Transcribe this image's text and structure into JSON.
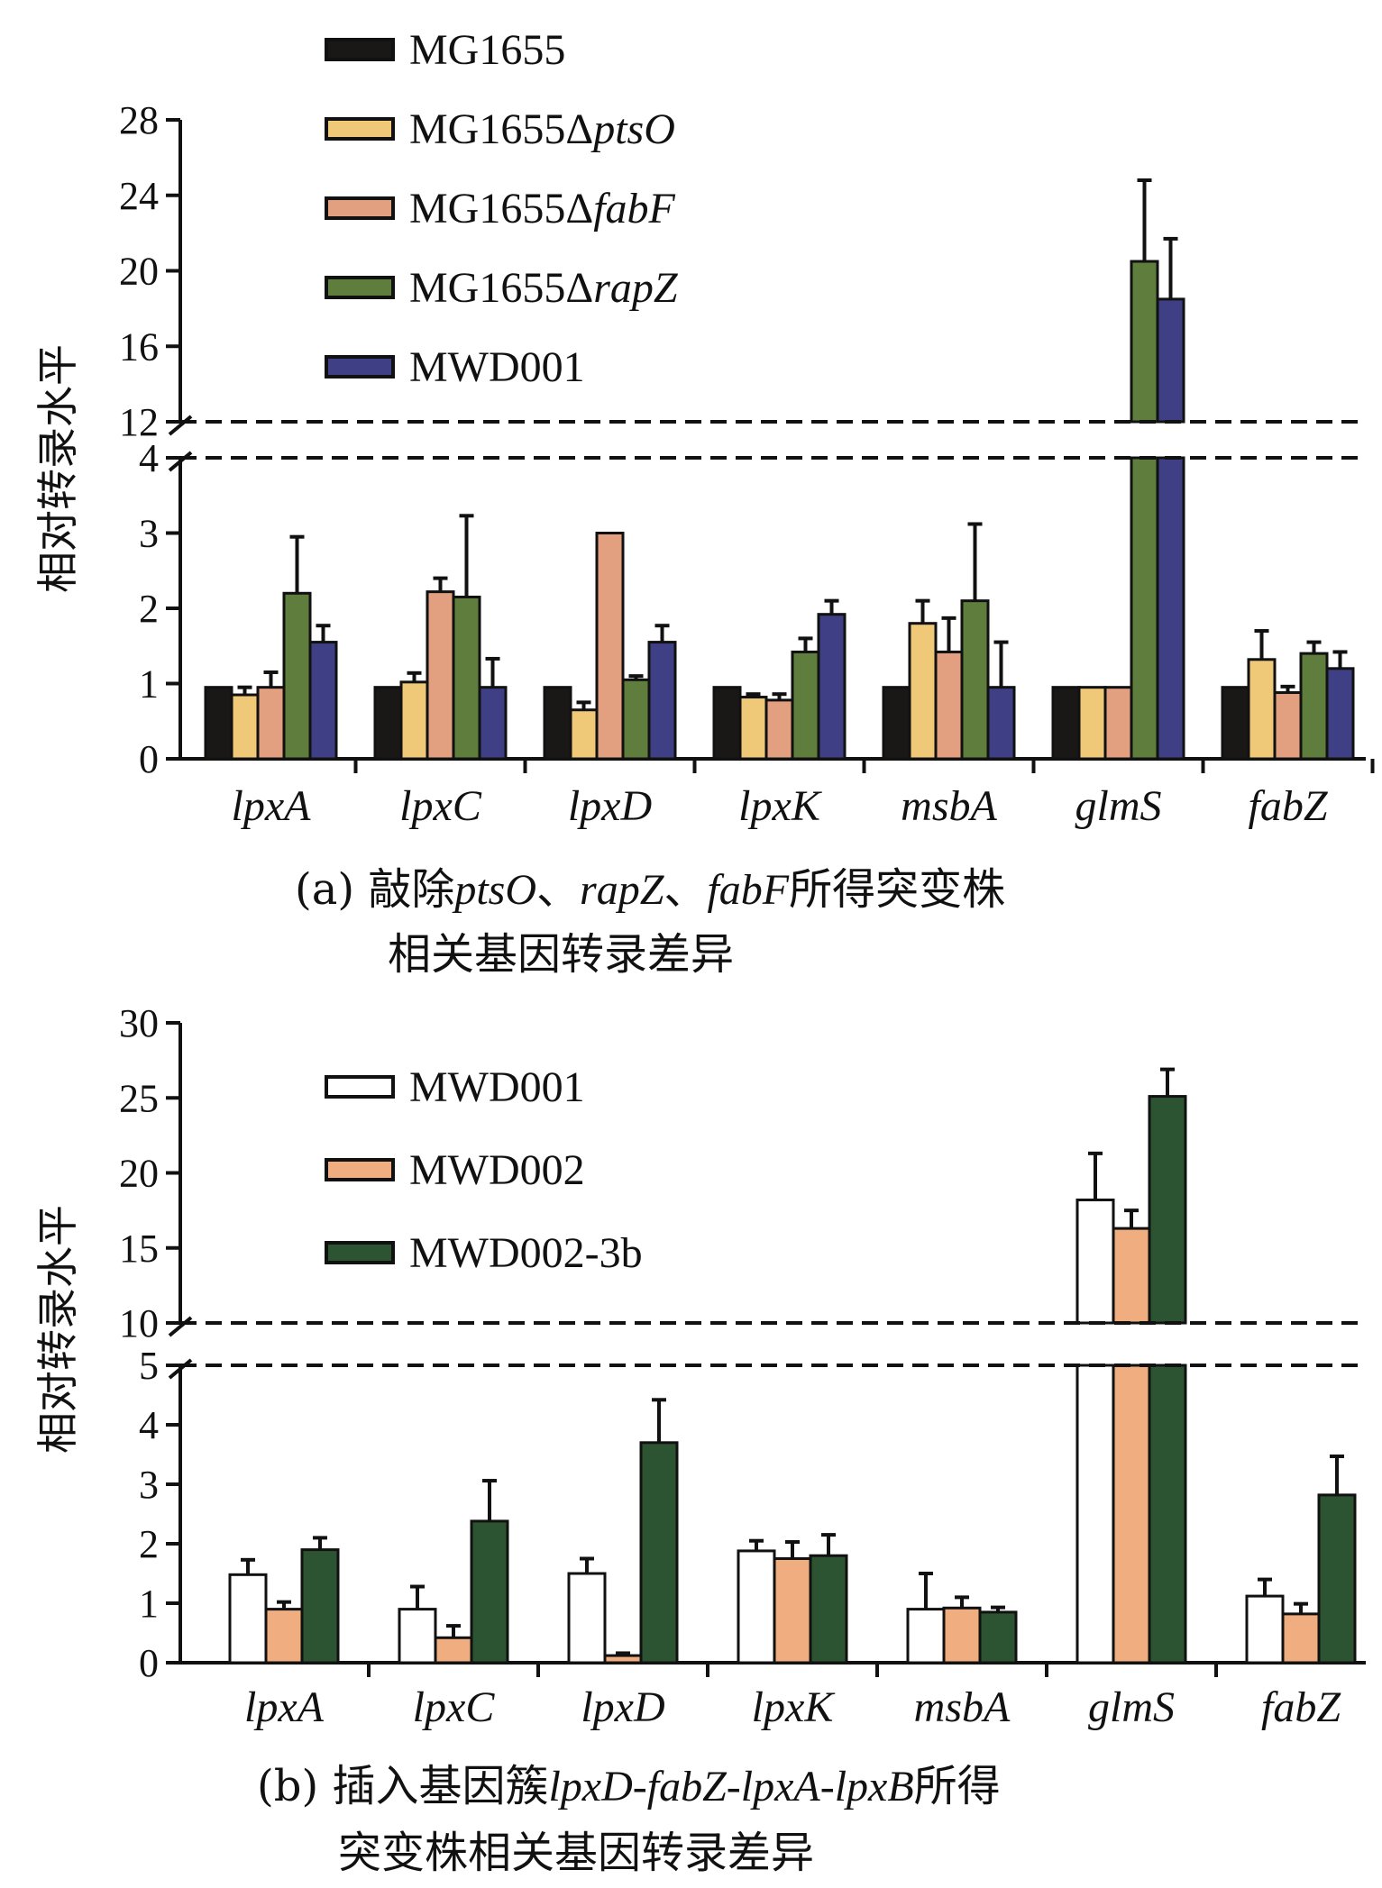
{
  "chart_data": [
    {
      "type": "bar",
      "panel": "a",
      "caption_line1_parts": [
        {
          "t": "(a) 敲除",
          "i": false
        },
        {
          "t": "ptsO",
          "i": true
        },
        {
          "t": "、",
          "i": false
        },
        {
          "t": "rapZ",
          "i": true
        },
        {
          "t": "、",
          "i": false
        },
        {
          "t": "fabF",
          "i": true
        },
        {
          "t": "所得突变株",
          "i": false
        }
      ],
      "caption_line2": "相关基因转录差异",
      "ylabel": "相对转录水平",
      "categories": [
        "lpxA",
        "lpxC",
        "lpxD",
        "lpxK",
        "msbA",
        "glmS",
        "fabZ"
      ],
      "axis_break": {
        "lower_max": 4,
        "upper_min": 12
      },
      "lower_ticks": [
        0,
        1,
        2,
        3,
        4
      ],
      "upper_ticks": [
        12,
        16,
        20,
        24,
        28
      ],
      "ylim": [
        0,
        28
      ],
      "legend_placement": "top-left",
      "series": [
        {
          "name": "MG1655",
          "name_base": "MG1655",
          "name_italic": "",
          "color": "#1a1816",
          "values": [
            0.95,
            0.95,
            0.95,
            0.95,
            0.95,
            0.95,
            0.95
          ],
          "errors": [
            0,
            0,
            0,
            0,
            0,
            0,
            0
          ]
        },
        {
          "name": "MG1655ΔptsO",
          "name_base": "MG1655Δ",
          "name_italic": "ptsO",
          "color": "#f0c978",
          "values": [
            0.85,
            1.02,
            0.65,
            0.82,
            1.8,
            0.95,
            1.32
          ],
          "errors": [
            0.1,
            0.12,
            0.1,
            0.04,
            0.3,
            0,
            0.38
          ]
        },
        {
          "name": "MG1655ΔfabF",
          "name_base": "MG1655Δ",
          "name_italic": "fabF",
          "color": "#e2a080",
          "values": [
            0.95,
            2.22,
            3.0,
            0.78,
            1.42,
            0.95,
            0.88
          ],
          "errors": [
            0.2,
            0.18,
            0,
            0.08,
            0.45,
            0,
            0.08
          ]
        },
        {
          "name": "MG1655ΔrapZ",
          "name_base": "MG1655Δ",
          "name_italic": "rapZ",
          "color": "#5f7e3d",
          "values": [
            2.2,
            2.15,
            1.05,
            1.42,
            2.1,
            20.5,
            1.4
          ],
          "errors": [
            0.75,
            1.08,
            0.05,
            0.18,
            1.02,
            4.3,
            0.15
          ]
        },
        {
          "name": "MWD001",
          "name_base": "MWD001",
          "name_italic": "",
          "color": "#3e3f84",
          "values": [
            1.55,
            0.95,
            1.55,
            1.92,
            0.95,
            18.5,
            1.2
          ],
          "errors": [
            0.22,
            0.38,
            0.22,
            0.18,
            0.6,
            3.2,
            0.22
          ]
        }
      ]
    },
    {
      "type": "bar",
      "panel": "b",
      "caption_line1_parts": [
        {
          "t": "(b) 插入基因簇",
          "i": false
        },
        {
          "t": "lpxD-fabZ-lpxA-lpxB",
          "i": true
        },
        {
          "t": "所得",
          "i": false
        }
      ],
      "caption_line2": "突变株相关基因转录差异",
      "ylabel": "相对转录水平",
      "categories": [
        "lpxA",
        "lpxC",
        "lpxD",
        "lpxK",
        "msbA",
        "glmS",
        "fabZ"
      ],
      "axis_break": {
        "lower_max": 5,
        "upper_min": 10
      },
      "lower_ticks": [
        0,
        1,
        2,
        3,
        4,
        5
      ],
      "upper_ticks": [
        10,
        15,
        20,
        25,
        30
      ],
      "ylim": [
        0,
        30
      ],
      "legend_placement": "top-left",
      "series": [
        {
          "name": "MWD001",
          "name_base": "MWD001",
          "name_italic": "",
          "color": "#ffffff",
          "values": [
            1.48,
            0.9,
            1.5,
            1.88,
            0.9,
            18.2,
            1.12
          ],
          "errors": [
            0.25,
            0.38,
            0.25,
            0.17,
            0.6,
            3.1,
            0.28
          ]
        },
        {
          "name": "MWD002",
          "name_base": "MWD002",
          "name_italic": "",
          "color": "#f0ad80",
          "values": [
            0.9,
            0.42,
            0.12,
            1.75,
            0.92,
            16.3,
            0.82
          ],
          "errors": [
            0.12,
            0.2,
            0.04,
            0.28,
            0.18,
            1.2,
            0.17
          ]
        },
        {
          "name": "MWD002-3b",
          "name_base": "MWD002-3b",
          "name_italic": "",
          "color": "#2d5432",
          "values": [
            1.9,
            2.38,
            3.7,
            1.8,
            0.85,
            25.1,
            2.82
          ],
          "errors": [
            0.2,
            0.68,
            0.72,
            0.35,
            0.08,
            1.8,
            0.65
          ]
        }
      ]
    }
  ]
}
